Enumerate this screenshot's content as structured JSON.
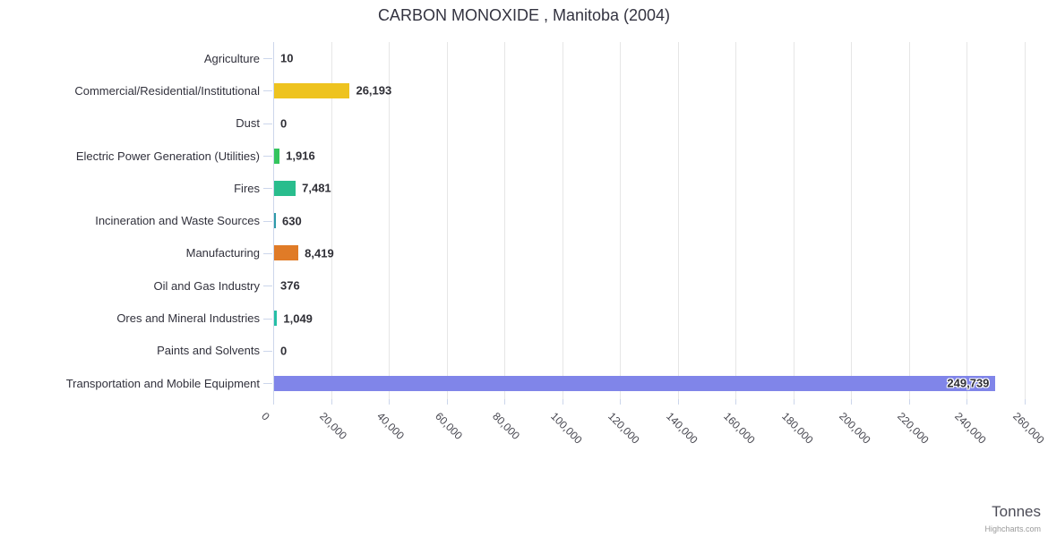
{
  "title": "CARBON MONOXIDE , Manitoba (2004)",
  "axis_title": "Tonnes",
  "credits": "Highcharts.com",
  "chart_data": {
    "type": "bar",
    "orientation": "horizontal",
    "title": "CARBON MONOXIDE , Manitoba (2004)",
    "xlabel": "Tonnes",
    "ylabel": "",
    "xlim": [
      0,
      260000
    ],
    "grid": true,
    "categories": [
      "Agriculture",
      "Commercial/Residential/Institutional",
      "Dust",
      "Electric Power Generation (Utilities)",
      "Fires",
      "Incineration and Waste Sources",
      "Manufacturing",
      "Oil and Gas Industry",
      "Ores and Mineral Industries",
      "Paints and Solvents",
      "Transportation and Mobile Equipment"
    ],
    "values": [
      10,
      26193,
      0,
      1916,
      7481,
      630,
      8419,
      376,
      1049,
      0,
      249739
    ],
    "value_labels": [
      "10",
      "26,193",
      "0",
      "1,916",
      "7,481",
      "630",
      "8,419",
      "376",
      "1,049",
      "0",
      "249,739"
    ],
    "bar_colors": [
      "#cccccc",
      "#eec31f",
      "#cccccc",
      "#34c45e",
      "#29bd8d",
      "#2d9aa8",
      "#e07b27",
      "#cccccc",
      "#25bfa5",
      "#cccccc",
      "#8085e9"
    ],
    "x_tick_labels": [
      "0",
      "20,000",
      "40,000",
      "60,000",
      "80,000",
      "100,000",
      "120,000",
      "140,000",
      "160,000",
      "180,000",
      "200,000",
      "220,000",
      "240,000",
      "260,000"
    ],
    "x_tick_step": 20000
  },
  "style": {
    "grid_color": "#e6e6e6",
    "axis_color": "#ccd6eb",
    "title_color": "#333340",
    "label_color": "#31313c"
  }
}
